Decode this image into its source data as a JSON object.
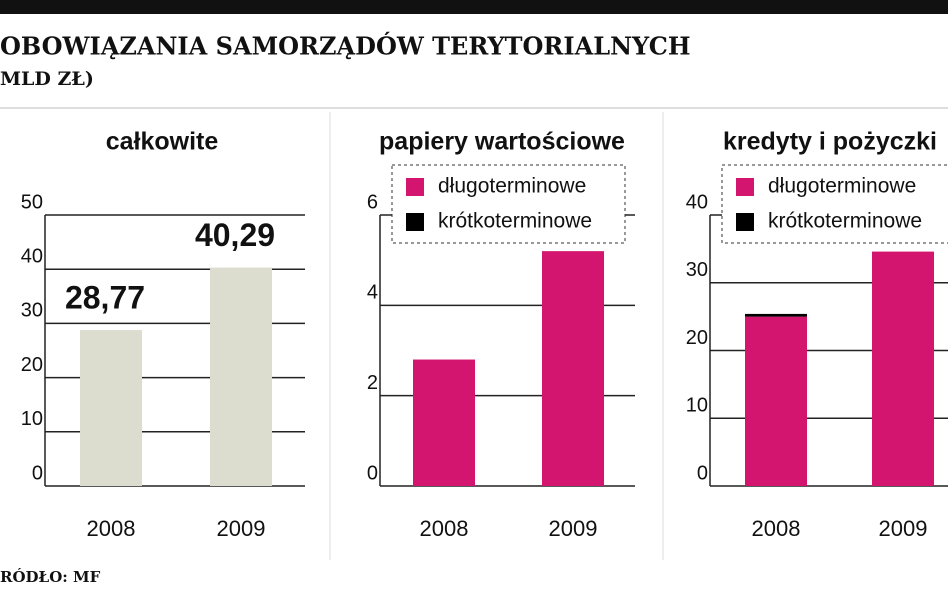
{
  "header": {
    "title": "OBOWIĄZANIA SAMORZĄDÓW TERYTORIALNYCH",
    "subtitle": "MLD ZŁ)"
  },
  "source": "RÓDŁO: MF",
  "chart_data": [
    {
      "type": "bar",
      "title": "całkowite",
      "categories": [
        "2008",
        "2009"
      ],
      "values": [
        28.77,
        40.29
      ],
      "value_labels": [
        "28,77",
        "40,29"
      ],
      "color": "#dcdccf",
      "ylim": [
        0,
        50
      ],
      "yticks": [
        0,
        10,
        20,
        30,
        40,
        50
      ],
      "grid": true
    },
    {
      "type": "stacked-bar",
      "title": "papiery wartościowe",
      "categories": [
        "2008",
        "2009"
      ],
      "series": [
        {
          "name": "długoterminowe",
          "color": "#d4156f",
          "values": [
            2.8,
            5.2
          ]
        },
        {
          "name": "krótkoterminowe",
          "color": "#000000",
          "values": [
            0,
            0
          ]
        }
      ],
      "ylim": [
        0,
        6
      ],
      "yticks": [
        0,
        2,
        4,
        6
      ],
      "grid": true
    },
    {
      "type": "stacked-bar",
      "title": "kredyty i pożyczki",
      "categories": [
        "2008",
        "2009"
      ],
      "series": [
        {
          "name": "długoterminowe",
          "color": "#d4156f",
          "values": [
            25.0,
            34.6
          ]
        },
        {
          "name": "krótkoterminowe",
          "color": "#000000",
          "values": [
            0.4,
            0
          ]
        }
      ],
      "ylim": [
        0,
        40
      ],
      "yticks": [
        0,
        10,
        20,
        30,
        40
      ],
      "grid": true
    }
  ]
}
